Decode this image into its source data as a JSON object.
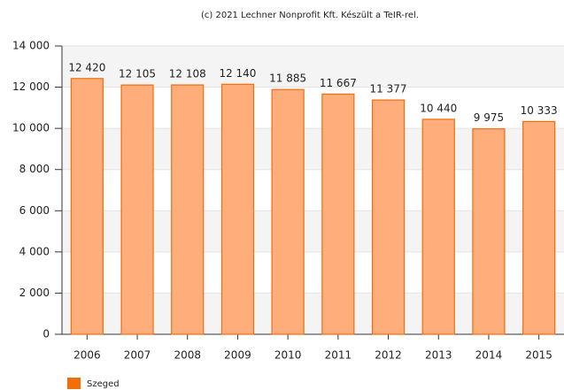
{
  "chart_data": {
    "type": "bar",
    "title": "(c) 2021 Lechner Nonprofit Kft. Készült a TeIR-rel.",
    "categories": [
      "2006",
      "2007",
      "2008",
      "2009",
      "2010",
      "2011",
      "2012",
      "2013",
      "2014",
      "2015"
    ],
    "series": [
      {
        "name": "Szeged",
        "color": "#ffad7a",
        "edgecolor": "#f26d0c",
        "values": [
          12420,
          12105,
          12108,
          12140,
          11885,
          11667,
          11377,
          10440,
          9975,
          10333
        ],
        "value_labels": [
          "12 420",
          "12 105",
          "12 108",
          "12 140",
          "11 885",
          "11 667",
          "11 377",
          "10 440",
          "9 975",
          "10 333"
        ]
      }
    ],
    "ylim": [
      0,
      14000
    ],
    "yticks": [
      0,
      {
        "value": 2000,
        "label": "2 000"
      },
      {
        "value": 4000,
        "label": "4 000"
      },
      {
        "value": 6000,
        "label": "6 000"
      },
      {
        "value": 8000,
        "label": "8 000"
      },
      {
        "value": 10000,
        "label": "10 000"
      },
      {
        "value": 12000,
        "label": "12 000"
      },
      {
        "value": 14000,
        "label": "14 000"
      }
    ],
    "grid": true,
    "legend": "bottom-left"
  }
}
